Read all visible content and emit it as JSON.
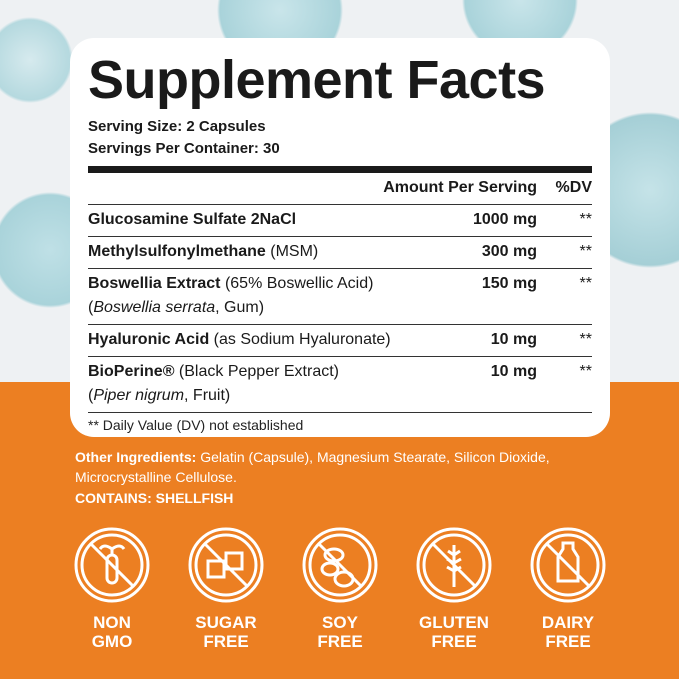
{
  "facts": {
    "title": "Supplement Facts",
    "serving_size": "Serving Size: 2 Capsules",
    "servings_per_container": "Servings Per Container: 30",
    "header_amount": "Amount Per Serving",
    "header_dv": "%DV",
    "rows": [
      {
        "name": "Glucosamine Sulfate 2NaCl",
        "detail": "",
        "sub": "",
        "amount": "1000 mg",
        "dv": "**"
      },
      {
        "name": "Methylsulfonylmethane",
        "detail": " (MSM)",
        "sub": "",
        "amount": "300 mg",
        "dv": "**"
      },
      {
        "name": "Boswellia Extract",
        "detail": " (65% Boswellic Acid)",
        "sub_italic": "Boswellia serrata",
        "sub": ", Gum)",
        "amount": "150 mg",
        "dv": "**"
      },
      {
        "name": "Hyaluronic Acid",
        "detail": " (as Sodium Hyaluronate)",
        "sub": "",
        "amount": "10 mg",
        "dv": "**"
      },
      {
        "name": "BioPerine®",
        "detail": " (Black Pepper Extract)",
        "sub_italic": "Piper nigrum",
        "sub": ", Fruit)",
        "amount": "10 mg",
        "dv": "**"
      }
    ],
    "footnote": "** Daily Value (DV) not established"
  },
  "other_ingredients": {
    "label": "Other Ingredients:",
    "text": " Gelatin (Capsule), Magnesium Stearate, Silicon Dioxide, Microcrystalline Cellulose."
  },
  "contains": "CONTAINS: SHELLFISH",
  "badges": [
    {
      "icon": "no-gmo-icon",
      "line1": "NON",
      "line2": "GMO"
    },
    {
      "icon": "no-sugar-icon",
      "line1": "SUGAR",
      "line2": "FREE"
    },
    {
      "icon": "no-soy-icon",
      "line1": "SOY",
      "line2": "FREE"
    },
    {
      "icon": "no-gluten-icon",
      "line1": "GLUTEN",
      "line2": "FREE"
    },
    {
      "icon": "no-dairy-icon",
      "line1": "DAIRY",
      "line2": "FREE"
    }
  ],
  "colors": {
    "orange": "#ec7f22",
    "droplet": "#a9d3da"
  }
}
